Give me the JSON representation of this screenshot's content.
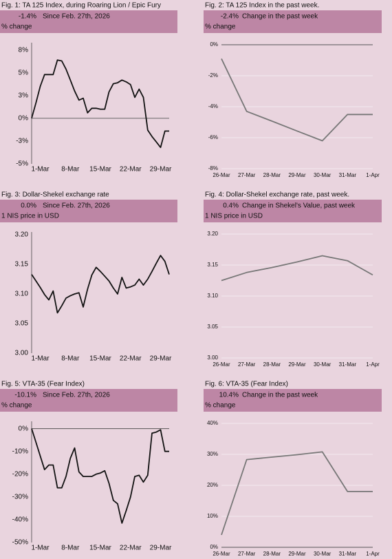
{
  "chart_data": [
    {
      "type": "line",
      "title": "Fig. 1: TA 125 Index, during Roaring Lion / Epic Fury",
      "change": "-1.4%",
      "change_label": "Since Feb. 27th, 2026",
      "subtitle": "% change",
      "categories": [
        null,
        null,
        "1-Mar",
        null,
        null,
        null,
        null,
        null,
        null,
        "8-Mar",
        null,
        null,
        null,
        null,
        null,
        null,
        "15-Mar",
        null,
        null,
        null,
        null,
        null,
        null,
        "22-Mar",
        null,
        null,
        null,
        null,
        null,
        null,
        "29-Mar",
        null,
        null
      ],
      "values": [
        0,
        1.7,
        3.5,
        4.8,
        4.8,
        4.8,
        6.4,
        6.3,
        5.4,
        4.2,
        3.0,
        2.0,
        2.2,
        0.6,
        1.1,
        1.1,
        1.0,
        1.0,
        2.9,
        3.8,
        3.9,
        4.2,
        4.0,
        3.7,
        2.3,
        3.2,
        2.3,
        -1.3,
        -2.0,
        -2.6,
        -3.2,
        -1.4,
        -1.4
      ],
      "color": "#111111",
      "ylim": [
        -5,
        8
      ],
      "yticks": [
        {
          "value": 7.5,
          "label": "8%"
        },
        {
          "value": 5,
          "label": "5%"
        },
        {
          "value": 2.5,
          "label": "3%"
        },
        {
          "value": 0,
          "label": "0%"
        },
        {
          "value": -2.5,
          "label": "-3%"
        },
        {
          "value": -5,
          "label": "-5%"
        }
      ],
      "grid": false
    },
    {
      "type": "line",
      "title": "Fig. 2: TA 125 Index in the past week.",
      "change": "-2.4%",
      "change_label": "Change in the past week",
      "subtitle": "% change",
      "categories": [
        "26-Mar",
        "27-Mar",
        "28-Mar",
        "29-Mar",
        "30-Mar",
        "31-Mar",
        "1-Apr"
      ],
      "values": [
        -0.9,
        -4.3,
        -4.93,
        -5.57,
        -6.2,
        -4.5,
        -4.5
      ],
      "color": "#777777",
      "ylim": [
        -8,
        0
      ],
      "yticks": [
        {
          "value": 0,
          "label": "0%"
        },
        {
          "value": -2,
          "label": "-2%"
        },
        {
          "value": -4,
          "label": "-4%"
        },
        {
          "value": -6,
          "label": "-6%"
        },
        {
          "value": -8,
          "label": "-8%"
        }
      ],
      "grid": true
    },
    {
      "type": "line",
      "title": "Fig. 3: Dollar-Shekel exchange rate",
      "change": "0.0%",
      "change_label": "Since Feb. 27th, 2026",
      "subtitle": "1 NIS price in USD",
      "categories": [
        null,
        null,
        "1-Mar",
        null,
        null,
        null,
        null,
        null,
        null,
        "8-Mar",
        null,
        null,
        null,
        null,
        null,
        null,
        "15-Mar",
        null,
        null,
        null,
        null,
        null,
        null,
        "22-Mar",
        null,
        null,
        null,
        null,
        null,
        null,
        "29-Mar",
        null,
        null
      ],
      "values": [
        3.133,
        3.122,
        3.111,
        3.099,
        3.09,
        3.105,
        3.068,
        3.08,
        3.093,
        3.097,
        3.1,
        3.102,
        3.078,
        3.108,
        3.132,
        3.145,
        3.138,
        3.13,
        3.122,
        3.11,
        3.1,
        3.128,
        3.11,
        3.112,
        3.115,
        3.125,
        3.115,
        3.125,
        3.138,
        3.152,
        3.165,
        3.155,
        3.133
      ],
      "color": "#111111",
      "ylim": [
        3.0,
        3.2
      ],
      "yticks": [
        {
          "value": 3.2,
          "label": "3.20"
        },
        3.15,
        {
          "value": 3.1,
          "label": "3.10"
        },
        3.05,
        {
          "value": 3.0,
          "label": "3.00"
        }
      ],
      "grid": false
    },
    {
      "type": "line",
      "title": "Fig. 4: Dollar-Shekel exchange rate, past week.",
      "change": "0.4%",
      "change_label": "Change in Shekel's Value, past week",
      "subtitle": "1 NIS price in USD",
      "categories": [
        "26-Mar",
        "27-Mar",
        "28-Mar",
        "29-Mar",
        "30-Mar",
        "31-Mar",
        "1-Apr"
      ],
      "values": [
        3.125,
        3.138,
        3.146,
        3.155,
        3.165,
        3.157,
        3.134
      ],
      "color": "#777777",
      "ylim": [
        3.0,
        3.2
      ],
      "yticks": [
        {
          "value": 3.2,
          "label": "3.20"
        },
        3.15,
        {
          "value": 3.1,
          "label": "3.10"
        },
        3.05,
        {
          "value": 3.0,
          "label": "3.00"
        }
      ],
      "grid": true
    },
    {
      "type": "line",
      "title": "Fig. 5: VTA-35 (Fear Index)",
      "change": "-10.1%",
      "change_label": "Since Feb. 27th, 2026",
      "subtitle": "% change",
      "categories": [
        null,
        null,
        "1-Mar",
        null,
        null,
        null,
        null,
        null,
        null,
        "8-Mar",
        null,
        null,
        null,
        null,
        null,
        null,
        "15-Mar",
        null,
        null,
        null,
        null,
        null,
        null,
        "22-Mar",
        null,
        null,
        null,
        null,
        null,
        null,
        "29-Mar",
        null,
        null
      ],
      "values": [
        0,
        -6,
        -12,
        -18,
        -16,
        -16,
        -26,
        -26,
        -21,
        -13,
        -8.5,
        -19,
        -21,
        -21,
        -21,
        -20,
        -19.5,
        -18.5,
        -24,
        -31.5,
        -33,
        -41.5,
        -36,
        -30,
        -21,
        -20.5,
        -23.5,
        -20.5,
        -2,
        -1.5,
        -0.5,
        -10,
        -10
      ],
      "color": "#111111",
      "ylim": [
        -50,
        2
      ],
      "yticks": [
        {
          "value": 0,
          "label": "0%"
        },
        {
          "value": -10,
          "label": "-10%"
        },
        {
          "value": -20,
          "label": "-20%"
        },
        {
          "value": -30,
          "label": "-30%"
        },
        {
          "value": -40,
          "label": "-40%"
        },
        {
          "value": -50,
          "label": "-50%"
        }
      ],
      "grid": false
    },
    {
      "type": "line",
      "title": "Fig. 6: VTA-35 (Fear Index)",
      "change": "10.4%",
      "change_label": "Change in the past week",
      "subtitle": "% change",
      "categories": [
        "26-Mar",
        "27-Mar",
        "28-Mar",
        "29-Mar",
        "30-Mar",
        "31-Mar",
        "1-Apr"
      ],
      "values": [
        4,
        28.3,
        29.1,
        29.9,
        30.8,
        18,
        18
      ],
      "color": "#777777",
      "ylim": [
        0,
        40
      ],
      "yticks": [
        {
          "value": 40,
          "label": "40%"
        },
        {
          "value": 30,
          "label": "30%"
        },
        {
          "value": 20,
          "label": "20%"
        },
        {
          "value": 10,
          "label": "10%"
        },
        {
          "value": 0,
          "label": "0%"
        }
      ],
      "grid": true
    }
  ]
}
